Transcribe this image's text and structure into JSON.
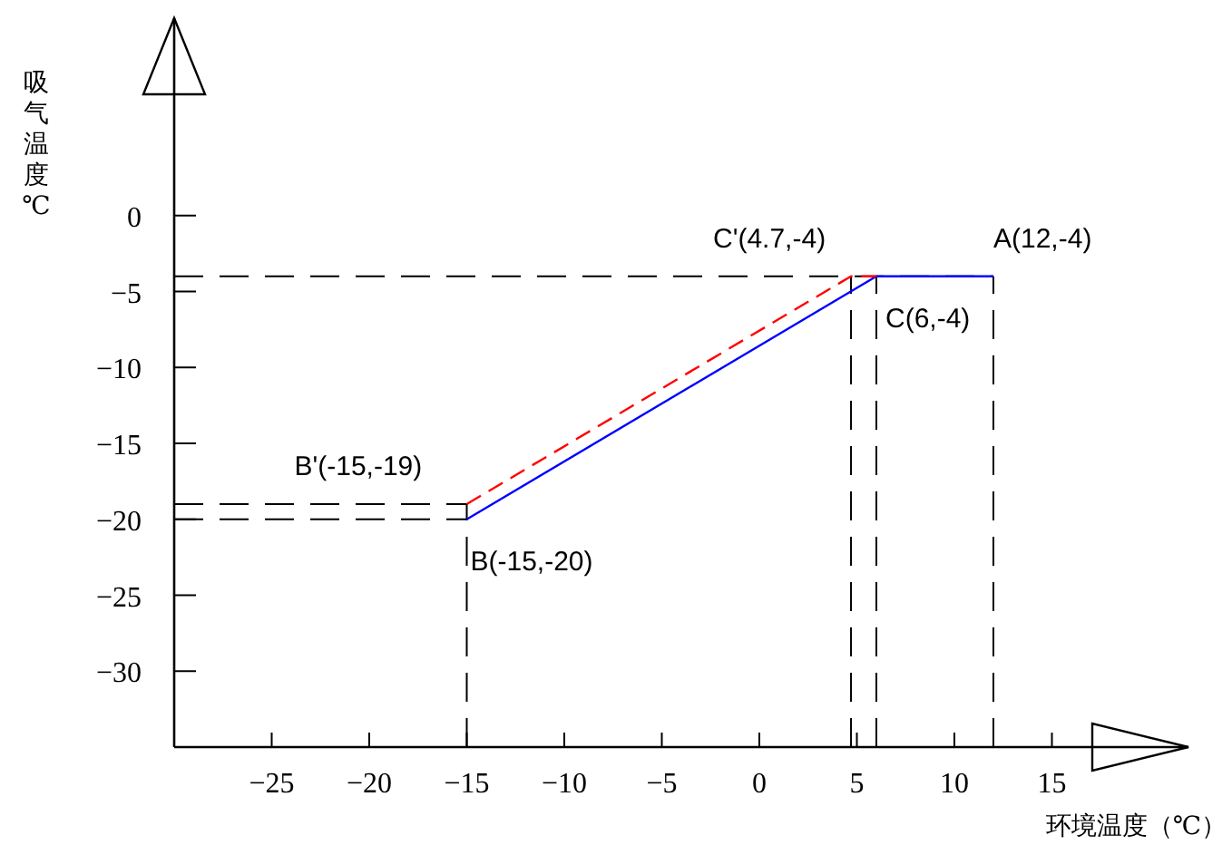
{
  "chart_data": {
    "type": "line",
    "xlabel": "环境温度（℃）",
    "ylabel": "吸气温度℃",
    "xlim": [
      -30,
      22
    ],
    "ylim": [
      -35,
      13
    ],
    "xticks": [
      -25,
      -20,
      -15,
      -10,
      -5,
      0,
      5,
      10,
      15
    ],
    "yticks": [
      0,
      -5,
      -10,
      -15,
      -20,
      -25,
      -30
    ],
    "grid": false,
    "legend": false,
    "marker": "none",
    "series": [
      {
        "color": "#0000ff",
        "line_style": "solid",
        "x": [
          -15,
          6,
          12
        ],
        "values": [
          -20,
          -4,
          -4
        ]
      },
      {
        "color": "#ff0000",
        "line_style": "dashed",
        "x": [
          -15,
          4.7,
          6
        ],
        "values": [
          -19,
          -4,
          -4
        ]
      }
    ],
    "ref_lines": [
      {
        "axis": "y",
        "value": -4,
        "label": null,
        "color": "#000000",
        "line_style": "dashed"
      },
      {
        "axis": "y",
        "value": -19,
        "label": null,
        "color": "#000000",
        "line_style": "dashed"
      },
      {
        "axis": "y",
        "value": -20,
        "label": null,
        "color": "#000000",
        "line_style": "dashed"
      },
      {
        "axis": "x",
        "value": -15,
        "label": null,
        "color": "#000000",
        "line_style": "dashed"
      },
      {
        "axis": "x",
        "value": 4.7,
        "label": null,
        "color": "#000000",
        "line_style": "dashed"
      },
      {
        "axis": "x",
        "value": 6,
        "label": null,
        "color": "#000000",
        "line_style": "dashed"
      },
      {
        "axis": "x",
        "value": 12,
        "label": null,
        "color": "#000000",
        "line_style": "dashed"
      }
    ],
    "annotations": [
      {
        "text": "A(12,-4)",
        "x": 12,
        "y": -4
      },
      {
        "text": "C'(4.7,-4)",
        "x": 4.7,
        "y": -4
      },
      {
        "text": "C(6,-4)",
        "x": 6,
        "y": -4
      },
      {
        "text": "B'(-15,-19)",
        "x": -15,
        "y": -19
      },
      {
        "text": "B(-15,-20)",
        "x": -15,
        "y": -20
      }
    ]
  }
}
